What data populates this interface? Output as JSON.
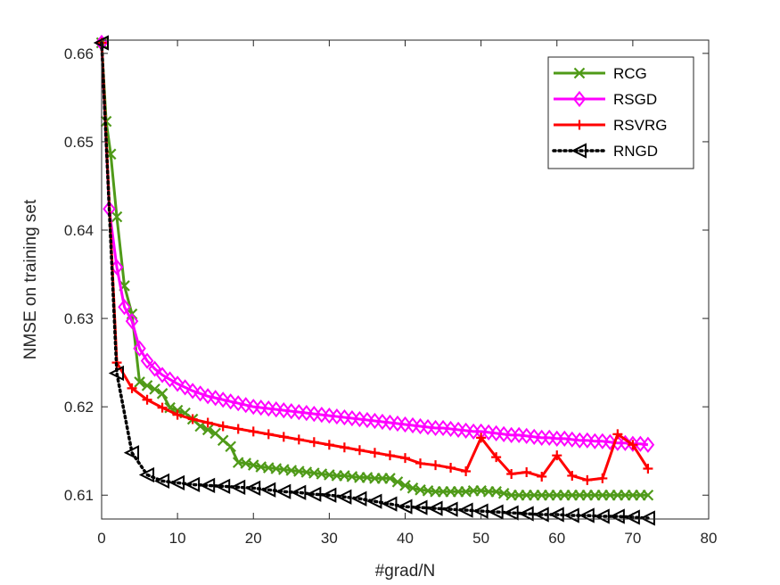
{
  "chart_data": {
    "type": "line",
    "title": "",
    "xlabel": "#grad/N",
    "ylabel": "NMSE on training set",
    "xlim": [
      0,
      80
    ],
    "ylim": [
      0.6073,
      0.6615
    ],
    "xticks": [
      0,
      10,
      20,
      30,
      40,
      50,
      60,
      70,
      80
    ],
    "yticks": [
      0.61,
      0.62,
      0.63,
      0.64,
      0.65,
      0.66
    ],
    "xtick_labels": [
      "0",
      "10",
      "20",
      "30",
      "40",
      "50",
      "60",
      "70",
      "80"
    ],
    "ytick_labels": [
      "0.61",
      "0.62",
      "0.63",
      "0.64",
      "0.65",
      "0.66"
    ],
    "grid": false,
    "legend_position": "top-right",
    "series": [
      {
        "name": "RCG",
        "color": "#4f9a18",
        "marker": "x",
        "linestyle": "solid",
        "x": [
          0,
          0.6,
          1.2,
          2.0,
          3.0,
          4.0,
          5.0,
          6.0,
          7.0,
          8.0,
          9.0,
          10.0,
          11.0,
          12.0,
          13.0,
          14.0,
          15.0,
          16.0,
          17.0,
          18.0,
          19.0,
          20.0,
          21.0,
          22.0,
          23.0,
          24.0,
          25.0,
          26.0,
          27.0,
          28.0,
          29.0,
          30.0,
          31.0,
          32.0,
          33.0,
          34.0,
          35.0,
          36.0,
          37.0,
          38.0,
          39.0,
          40.0,
          41.0,
          42.0,
          43.0,
          44.0,
          45.0,
          46.0,
          47.0,
          48.0,
          49.0,
          50.0,
          51.0,
          52.0,
          53.0,
          54.0,
          55.0,
          56.0,
          57.0,
          58.0,
          59.0,
          60.0,
          61.0,
          62.0,
          63.0,
          64.0,
          65.0,
          66.0,
          67.0,
          68.0,
          69.0,
          70.0,
          71.0,
          72.0
        ],
        "y": [
          0.6612,
          0.6523,
          0.6486,
          0.6415,
          0.6337,
          0.6305,
          0.6228,
          0.6224,
          0.622,
          0.6215,
          0.6199,
          0.6196,
          0.6193,
          0.6186,
          0.6178,
          0.6174,
          0.617,
          0.6162,
          0.6155,
          0.6137,
          0.6136,
          0.6134,
          0.6132,
          0.6131,
          0.613,
          0.6129,
          0.6128,
          0.6127,
          0.6126,
          0.6125,
          0.6124,
          0.6123,
          0.6122,
          0.6122,
          0.6121,
          0.612,
          0.612,
          0.6119,
          0.6119,
          0.6119,
          0.6115,
          0.6111,
          0.6108,
          0.6106,
          0.6105,
          0.6104,
          0.6104,
          0.6104,
          0.6104,
          0.6104,
          0.6105,
          0.6105,
          0.6104,
          0.6104,
          0.6102,
          0.61,
          0.61,
          0.61,
          0.61,
          0.61,
          0.61,
          0.61,
          0.61,
          0.61,
          0.61,
          0.61,
          0.61,
          0.61,
          0.61,
          0.61,
          0.61,
          0.61,
          0.61,
          0.61
        ]
      },
      {
        "name": "RSGD",
        "color": "#ff00ff",
        "marker": "diamond",
        "linestyle": "solid",
        "x": [
          0,
          1,
          2,
          3,
          4,
          5,
          6,
          7,
          8,
          9,
          10,
          11,
          12,
          13,
          14,
          15,
          16,
          17,
          18,
          19,
          20,
          21,
          22,
          23,
          24,
          25,
          26,
          27,
          28,
          29,
          30,
          31,
          32,
          33,
          34,
          35,
          36,
          37,
          38,
          39,
          40,
          41,
          42,
          43,
          44,
          45,
          46,
          47,
          48,
          49,
          50,
          51,
          52,
          53,
          54,
          55,
          56,
          57,
          58,
          59,
          60,
          61,
          62,
          63,
          64,
          65,
          66,
          67,
          68,
          69,
          70,
          71,
          72
        ],
        "y": [
          0.6612,
          0.6424,
          0.6358,
          0.6313,
          0.6297,
          0.6266,
          0.6252,
          0.6243,
          0.6236,
          0.6231,
          0.6226,
          0.6222,
          0.6218,
          0.6215,
          0.6212,
          0.621,
          0.6208,
          0.6206,
          0.6204,
          0.6202,
          0.62,
          0.6199,
          0.6198,
          0.6197,
          0.6196,
          0.6195,
          0.6194,
          0.6193,
          0.6192,
          0.6191,
          0.619,
          0.6189,
          0.6188,
          0.6187,
          0.6186,
          0.6185,
          0.6184,
          0.6183,
          0.6182,
          0.6181,
          0.618,
          0.6179,
          0.6178,
          0.6177,
          0.6176,
          0.6176,
          0.6175,
          0.6174,
          0.6173,
          0.6172,
          0.6172,
          0.6171,
          0.617,
          0.6169,
          0.6168,
          0.6168,
          0.6167,
          0.6166,
          0.6165,
          0.6165,
          0.6164,
          0.6164,
          0.6163,
          0.6162,
          0.6162,
          0.6161,
          0.6161,
          0.616,
          0.6159,
          0.6159,
          0.6158,
          0.6158,
          0.6157
        ]
      },
      {
        "name": "RSVRG",
        "color": "#ff0000",
        "marker": "plus",
        "linestyle": "solid",
        "x": [
          0,
          2,
          4,
          6,
          8,
          10,
          12,
          14,
          16,
          18,
          20,
          22,
          24,
          26,
          28,
          30,
          32,
          34,
          36,
          38,
          40,
          42,
          44,
          46,
          48,
          50,
          52,
          54,
          56,
          58,
          60,
          62,
          64,
          66,
          68,
          70,
          72
        ],
        "y": [
          0.6612,
          0.625,
          0.6221,
          0.6208,
          0.6199,
          0.6191,
          0.6186,
          0.6182,
          0.6178,
          0.6175,
          0.6172,
          0.6169,
          0.6166,
          0.6163,
          0.616,
          0.6157,
          0.6154,
          0.6151,
          0.6148,
          0.6145,
          0.6142,
          0.6136,
          0.6134,
          0.6131,
          0.6127,
          0.6165,
          0.6143,
          0.6124,
          0.6126,
          0.6121,
          0.6145,
          0.6122,
          0.6117,
          0.6119,
          0.6169,
          0.6157,
          0.613
        ]
      },
      {
        "name": "RNGD",
        "color": "#000000",
        "marker": "triangle-left",
        "linestyle": "dotted",
        "x": [
          0,
          2,
          4,
          6,
          8,
          10,
          12,
          14,
          16,
          18,
          20,
          22,
          24,
          26,
          28,
          30,
          32,
          34,
          36,
          38,
          40,
          42,
          44,
          46,
          48,
          50,
          52,
          54,
          56,
          58,
          60,
          62,
          64,
          66,
          68,
          70,
          72
        ],
        "y": [
          0.6612,
          0.6238,
          0.6148,
          0.6123,
          0.6116,
          0.6114,
          0.6112,
          0.6111,
          0.611,
          0.6109,
          0.6108,
          0.6106,
          0.6104,
          0.6103,
          0.6101,
          0.61,
          0.6098,
          0.6096,
          0.6093,
          0.609,
          0.6087,
          0.6086,
          0.6085,
          0.6084,
          0.6083,
          0.6082,
          0.6081,
          0.608,
          0.6079,
          0.6078,
          0.6078,
          0.6077,
          0.6077,
          0.6076,
          0.6076,
          0.6075,
          0.6074
        ]
      }
    ]
  }
}
